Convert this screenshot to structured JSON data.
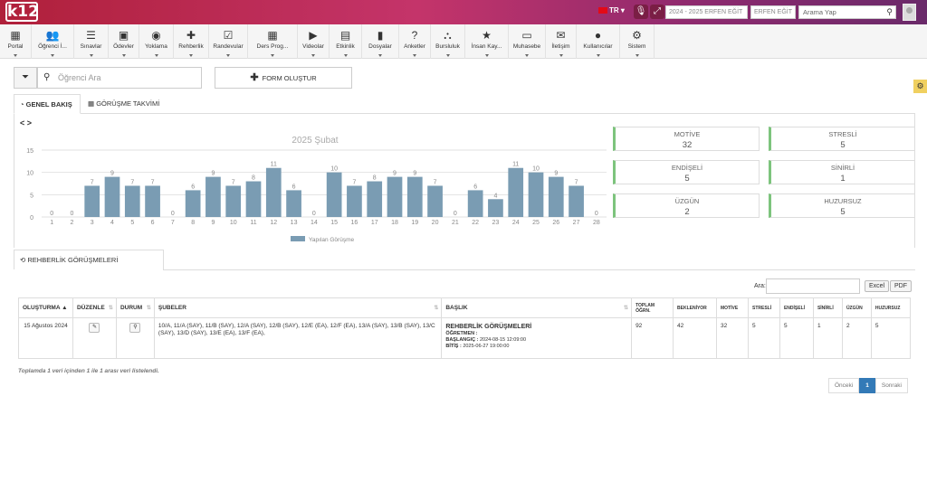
{
  "topbar": {
    "logo": "k12",
    "lang": "TR",
    "year_select": "2024 - 2025 ERFEN EĞİT",
    "school_select": "ERFEN EĞİT",
    "search_placeholder": "Arama Yap"
  },
  "menu": [
    {
      "label": "Portal",
      "icon": "▦"
    },
    {
      "label": "Öğrenci İ...",
      "icon": "👥"
    },
    {
      "label": "Sınavlar",
      "icon": "☰"
    },
    {
      "label": "Ödevler",
      "icon": "▣"
    },
    {
      "label": "Yoklama",
      "icon": "◉"
    },
    {
      "label": "Rehberlik",
      "icon": "✚"
    },
    {
      "label": "Randevular",
      "icon": "☑"
    },
    {
      "label": "Ders Prog...",
      "icon": "▦"
    },
    {
      "label": "Videolar",
      "icon": "▶"
    },
    {
      "label": "Etkinlik",
      "icon": "▤"
    },
    {
      "label": "Dosyalar",
      "icon": "▮"
    },
    {
      "label": "Anketler",
      "icon": "?"
    },
    {
      "label": "Bursluluk",
      "icon": "⛬"
    },
    {
      "label": "İnsan Kay...",
      "icon": "★"
    },
    {
      "label": "Muhasebe",
      "icon": "▭"
    },
    {
      "label": "İletişim",
      "icon": "✉"
    },
    {
      "label": "Kullanıcılar",
      "icon": "●"
    },
    {
      "label": "Sistem",
      "icon": "⚙"
    }
  ],
  "toolbar": {
    "search_placeholder": "Öğrenci Ara",
    "form_button": "FORM OLUŞTUR"
  },
  "tabs": {
    "overview": "GENEL BAKIŞ",
    "calendar": "GÖRÜŞME TAKVİMİ"
  },
  "chart_data": {
    "type": "bar",
    "title": "2025 Şubat",
    "categories": [
      "1",
      "2",
      "3",
      "4",
      "5",
      "6",
      "7",
      "8",
      "9",
      "10",
      "11",
      "12",
      "13",
      "14",
      "15",
      "16",
      "17",
      "18",
      "19",
      "20",
      "21",
      "22",
      "23",
      "24",
      "25",
      "26",
      "27",
      "28"
    ],
    "series": [
      {
        "name": "Yapılan Görüşme",
        "values": [
          0,
          0,
          7,
          9,
          7,
          7,
          0,
          6,
          9,
          7,
          8,
          11,
          6,
          0,
          10,
          7,
          8,
          9,
          9,
          7,
          0,
          6,
          4,
          11,
          10,
          9,
          7,
          0
        ]
      }
    ],
    "ylim": [
      0,
      15
    ],
    "yticks": [
      0,
      5,
      10,
      15
    ],
    "color": "#7a9cb3"
  },
  "stats": [
    {
      "label": "MOTİVE",
      "value": "32"
    },
    {
      "label": "STRESLİ",
      "value": "5"
    },
    {
      "label": "ENDİŞELİ",
      "value": "5"
    },
    {
      "label": "SİNİRLİ",
      "value": "1"
    },
    {
      "label": "ÜZGÜN",
      "value": "2"
    },
    {
      "label": "HUZURSUZ",
      "value": "5"
    }
  ],
  "section_title": "REHBERLİK GÖRÜŞMELERİ",
  "table": {
    "search_label": "Ara:",
    "excel": "Excel",
    "pdf": "PDF",
    "headers": {
      "created": "OLUŞTURMA",
      "edit": "DÜZENLE",
      "status": "DURUM",
      "branches": "ŞUBELER",
      "title": "BAŞLIK",
      "total": "TOPLAM ÖĞRN.",
      "waiting": "BEKLENİYOR",
      "motive": "MOTİVE",
      "stressed": "STRESLİ",
      "worried": "ENDİŞELİ",
      "angry": "SİNİRLİ",
      "sad": "ÜZGÜN",
      "restless": "HUZURSUZ"
    },
    "row": {
      "created": "15 Ağustos 2024",
      "branches": "10/A, 11/A (SAY), 11/B (SAY), 12/A (SAY), 12/B (SAY), 12/E (EA), 12/F (EA), 13/A (SAY), 13/B (SAY), 13/C (SAY), 13/D (SAY), 13/E (EA), 13/F (EA),",
      "title": "REHBERLİK GÖRÜŞMELERİ",
      "teacher_label": "ÖĞRETMEN :",
      "start_label": "BAŞLANGIÇ :",
      "start_value": "2024-08-15 12:09:00",
      "end_label": "BİTİŞ :",
      "end_value": "2025-06-27 19:00:00",
      "total": "92",
      "waiting": "42",
      "motive": "32",
      "stressed": "5",
      "worried": "5",
      "angry": "1",
      "sad": "2",
      "restless": "5"
    },
    "summary": "Toplamda 1 veri içinden 1 ile 1 arası veri listelendi."
  },
  "pager": {
    "prev": "Önceki",
    "page": "1",
    "next": "Sonraki"
  }
}
